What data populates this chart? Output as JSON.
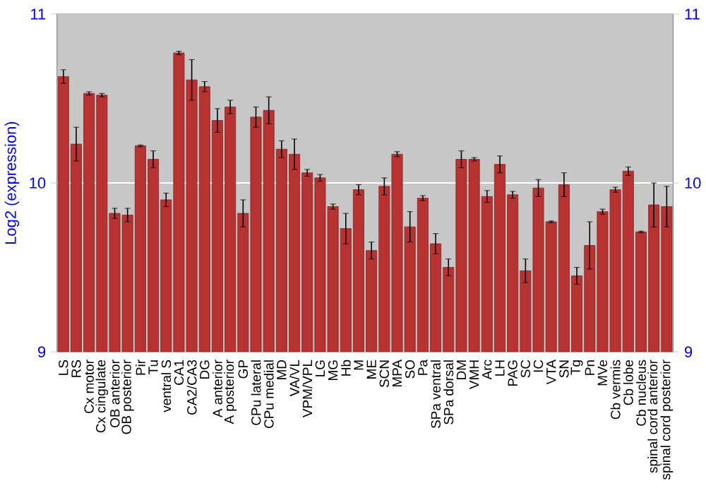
{
  "chart_data": {
    "type": "bar",
    "ylabel": "Log2 (expression)",
    "categories": [
      "LS",
      "RS",
      "Cx motor",
      "Cx cingulate",
      "OB anterior",
      "OB posterior",
      "Pir",
      "Tu",
      "ventral S",
      "CA1",
      "CA2/CA3",
      "DG",
      "A anterior",
      "A posterior",
      "GP",
      "CPu lateral",
      "CPu medial",
      "MD",
      "VA/VL",
      "VPM/VPL",
      "LG",
      "MG",
      "Hb",
      "M",
      "ME",
      "SCN",
      "MPA",
      "SO",
      "Pa",
      "SPa ventral",
      "SPa dorsal",
      "DM",
      "VMH",
      "Arc",
      "LH",
      "PAG",
      "SC",
      "IC",
      "VTA",
      "SN",
      "Tg",
      "Pn",
      "MVe",
      "Cb vermis",
      "Cb lobe",
      "Cb nucleus",
      "spinal cord anterior",
      "spinal cord posterior"
    ],
    "values": [
      10.63,
      10.23,
      10.53,
      10.52,
      9.82,
      9.81,
      10.22,
      10.14,
      9.9,
      10.77,
      10.61,
      10.57,
      10.37,
      10.45,
      9.82,
      10.39,
      10.43,
      10.2,
      10.17,
      10.06,
      10.03,
      9.86,
      9.73,
      9.96,
      9.6,
      9.98,
      10.17,
      9.74,
      9.91,
      9.64,
      9.5,
      10.14,
      10.14,
      9.92,
      10.11,
      9.93,
      9.48,
      9.97,
      9.77,
      9.99,
      9.45,
      9.63,
      9.83,
      9.96,
      10.07,
      9.71,
      9.87,
      9.86
    ],
    "errors": [
      0.04,
      0.1,
      0.01,
      0.01,
      0.03,
      0.04,
      0.005,
      0.05,
      0.04,
      0.01,
      0.12,
      0.03,
      0.07,
      0.04,
      0.08,
      0.06,
      0.08,
      0.05,
      0.09,
      0.02,
      0.02,
      0.015,
      0.09,
      0.03,
      0.05,
      0.05,
      0.015,
      0.09,
      0.015,
      0.06,
      0.05,
      0.05,
      0.01,
      0.035,
      0.05,
      0.02,
      0.07,
      0.05,
      0.005,
      0.07,
      0.05,
      0.14,
      0.015,
      0.015,
      0.025,
      0.005,
      0.13,
      0.12
    ],
    "color": "#b83232",
    "ylim": [
      9,
      11
    ],
    "yticks": [
      9,
      10,
      11
    ],
    "y2lim": [
      9,
      11
    ],
    "y2ticks": [
      9,
      10,
      11
    ],
    "grid": "y"
  }
}
